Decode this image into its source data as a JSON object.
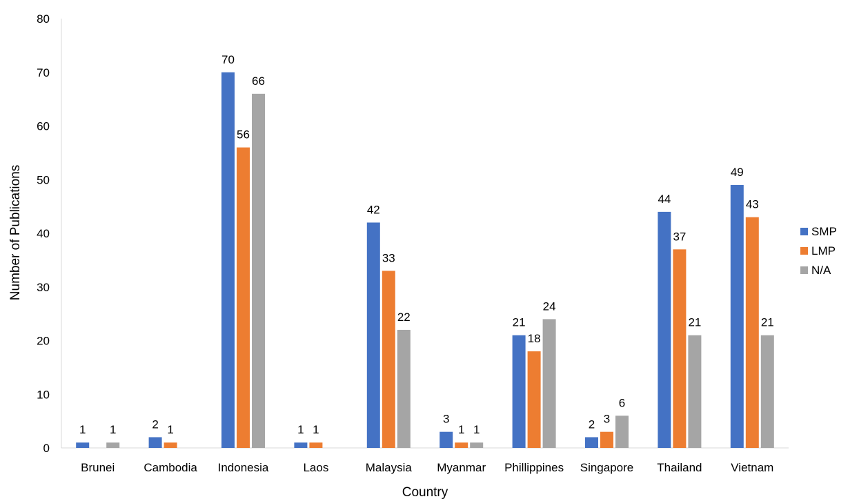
{
  "chart_data": {
    "type": "bar",
    "title": "",
    "xlabel": "Country",
    "ylabel": "Number of Publications",
    "ylim": [
      0,
      80
    ],
    "yticks": [
      0,
      10,
      20,
      30,
      40,
      50,
      60,
      70,
      80
    ],
    "grid": false,
    "legend_position": "right",
    "categories": [
      "Brunei",
      "Cambodia",
      "Indonesia",
      "Laos",
      "Malaysia",
      "Myanmar",
      "Phillippines",
      "Singapore",
      "Thailand",
      "Vietnam"
    ],
    "series": [
      {
        "name": "SMP",
        "color": "#4472C4",
        "values": [
          1,
          2,
          70,
          1,
          42,
          3,
          21,
          2,
          44,
          49
        ]
      },
      {
        "name": "LMP",
        "color": "#ED7D31",
        "values": [
          0,
          1,
          56,
          1,
          33,
          1,
          18,
          3,
          37,
          43
        ]
      },
      {
        "name": "N/A",
        "color": "#A5A5A5",
        "values": [
          1,
          0,
          66,
          0,
          22,
          1,
          24,
          6,
          21,
          21
        ]
      }
    ],
    "data_labels": [
      [
        "1",
        "2",
        "70",
        "1",
        "42",
        "3",
        "21",
        "2",
        "44",
        "49"
      ],
      [
        "",
        "1",
        "56",
        "1",
        "33",
        "1",
        "18",
        "3",
        "37",
        "43"
      ],
      [
        "1",
        "",
        "66",
        "",
        "22",
        "1",
        "24",
        "6",
        "21",
        "21"
      ]
    ]
  }
}
